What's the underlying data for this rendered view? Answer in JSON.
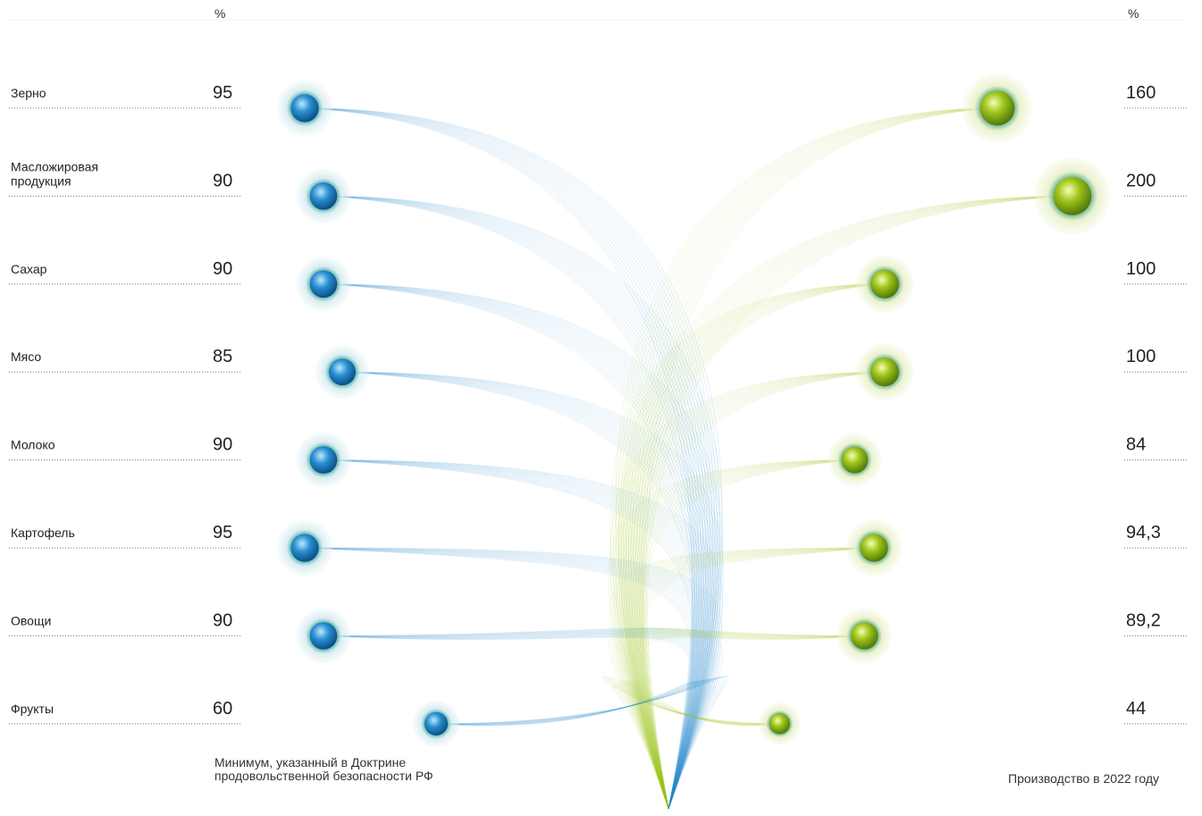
{
  "chart_data": {
    "type": "dot",
    "categories": [
      "Зерно",
      "Масложировая продукция",
      "Сахар",
      "Мясо",
      "Молоко",
      "Картофель",
      "Овощи",
      "Фрукты"
    ],
    "series": [
      {
        "name": "Минимум, указанный в Доктрине продовольственной безопасности РФ",
        "unit": "%",
        "color": "#2a8fd0",
        "values": [
          95,
          90,
          90,
          85,
          90,
          95,
          90,
          60
        ]
      },
      {
        "name": "Производство в 2022 году",
        "unit": "%",
        "color": "#9ec21a",
        "values": [
          160,
          200,
          100,
          100,
          84,
          94.3,
          89.2,
          44
        ],
        "value_labels": [
          "160",
          "200",
          "100",
          "100",
          "84",
          "94,3",
          "89,2",
          "44"
        ]
      }
    ]
  }
}
